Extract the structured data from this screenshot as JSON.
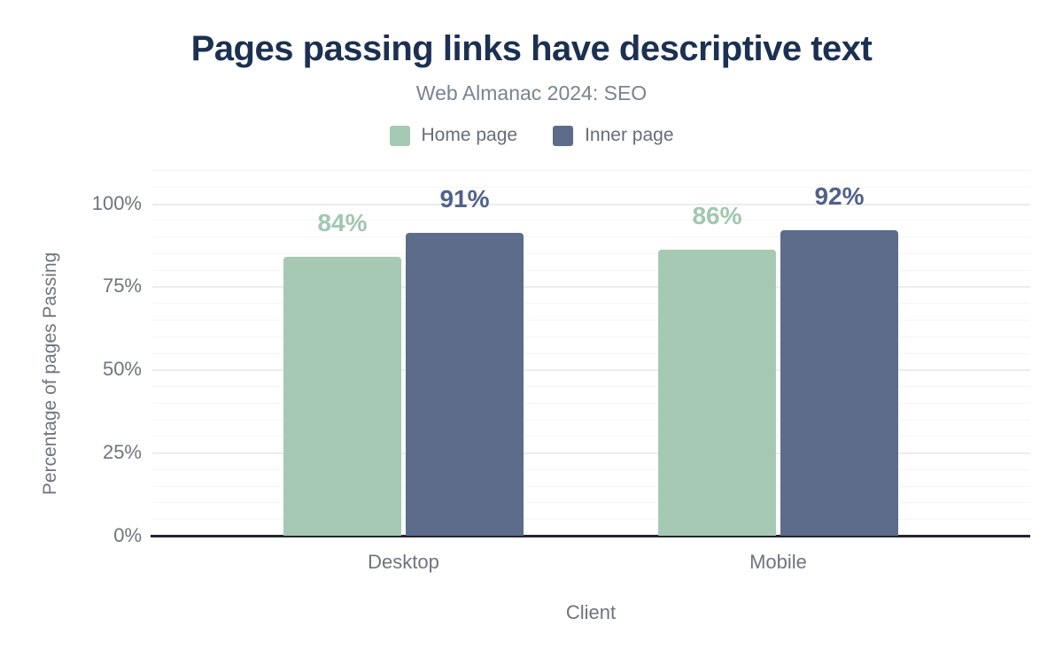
{
  "title": "Pages passing links have descriptive text",
  "subtitle": "Web Almanac 2024: SEO",
  "chart_data": {
    "type": "bar",
    "categories": [
      "Desktop",
      "Mobile"
    ],
    "series": [
      {
        "name": "Home page",
        "values": [
          84,
          86
        ],
        "color": "#a6c9b4",
        "label_color": "#a1c7b0"
      },
      {
        "name": "Inner page",
        "values": [
          91,
          92
        ],
        "color": "#5c6c8a",
        "label_color": "#4f628b"
      }
    ],
    "value_suffix": "%",
    "xlabel": "Client",
    "ylabel": "Percentage of pages Passing",
    "ylim": [
      0,
      110
    ],
    "yticks": [
      0,
      25,
      50,
      75,
      100
    ],
    "ytick_suffix": "%",
    "grid": {
      "major_step": 25,
      "minor_step": 5,
      "visible": true
    },
    "legend_position": "top"
  },
  "colors": {
    "title": "#1c3051",
    "subtitle": "#7a8391",
    "legend_text": "#666d79",
    "tick_text": "#6e747e",
    "axis_line": "#23272e",
    "grid_major": "#ececec",
    "grid_minor": "#f5f5f5",
    "background": "#ffffff"
  }
}
